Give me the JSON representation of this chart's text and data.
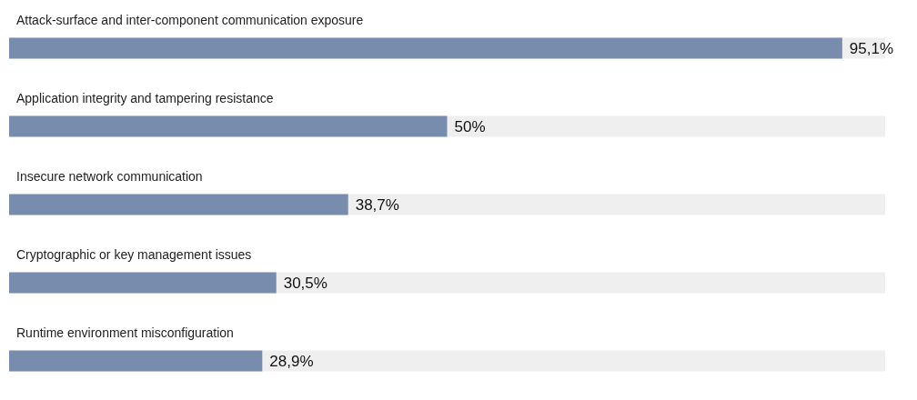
{
  "chart_data": {
    "type": "bar",
    "orientation": "horizontal",
    "categories": [
      "Attack-surface and inter-component communication exposure",
      "Application integrity and tampering resistance",
      "Insecure network communication",
      "Cryptographic or key management issues",
      "Runtime environment misconfiguration"
    ],
    "values": [
      95.1,
      50,
      38.7,
      30.5,
      28.9
    ],
    "value_labels": [
      "95,1%",
      "50%",
      "38,7%",
      "30,5%",
      "28,9%"
    ],
    "color": "#788dae",
    "xlim": [
      0,
      100
    ],
    "tick_labels": "y"
  }
}
